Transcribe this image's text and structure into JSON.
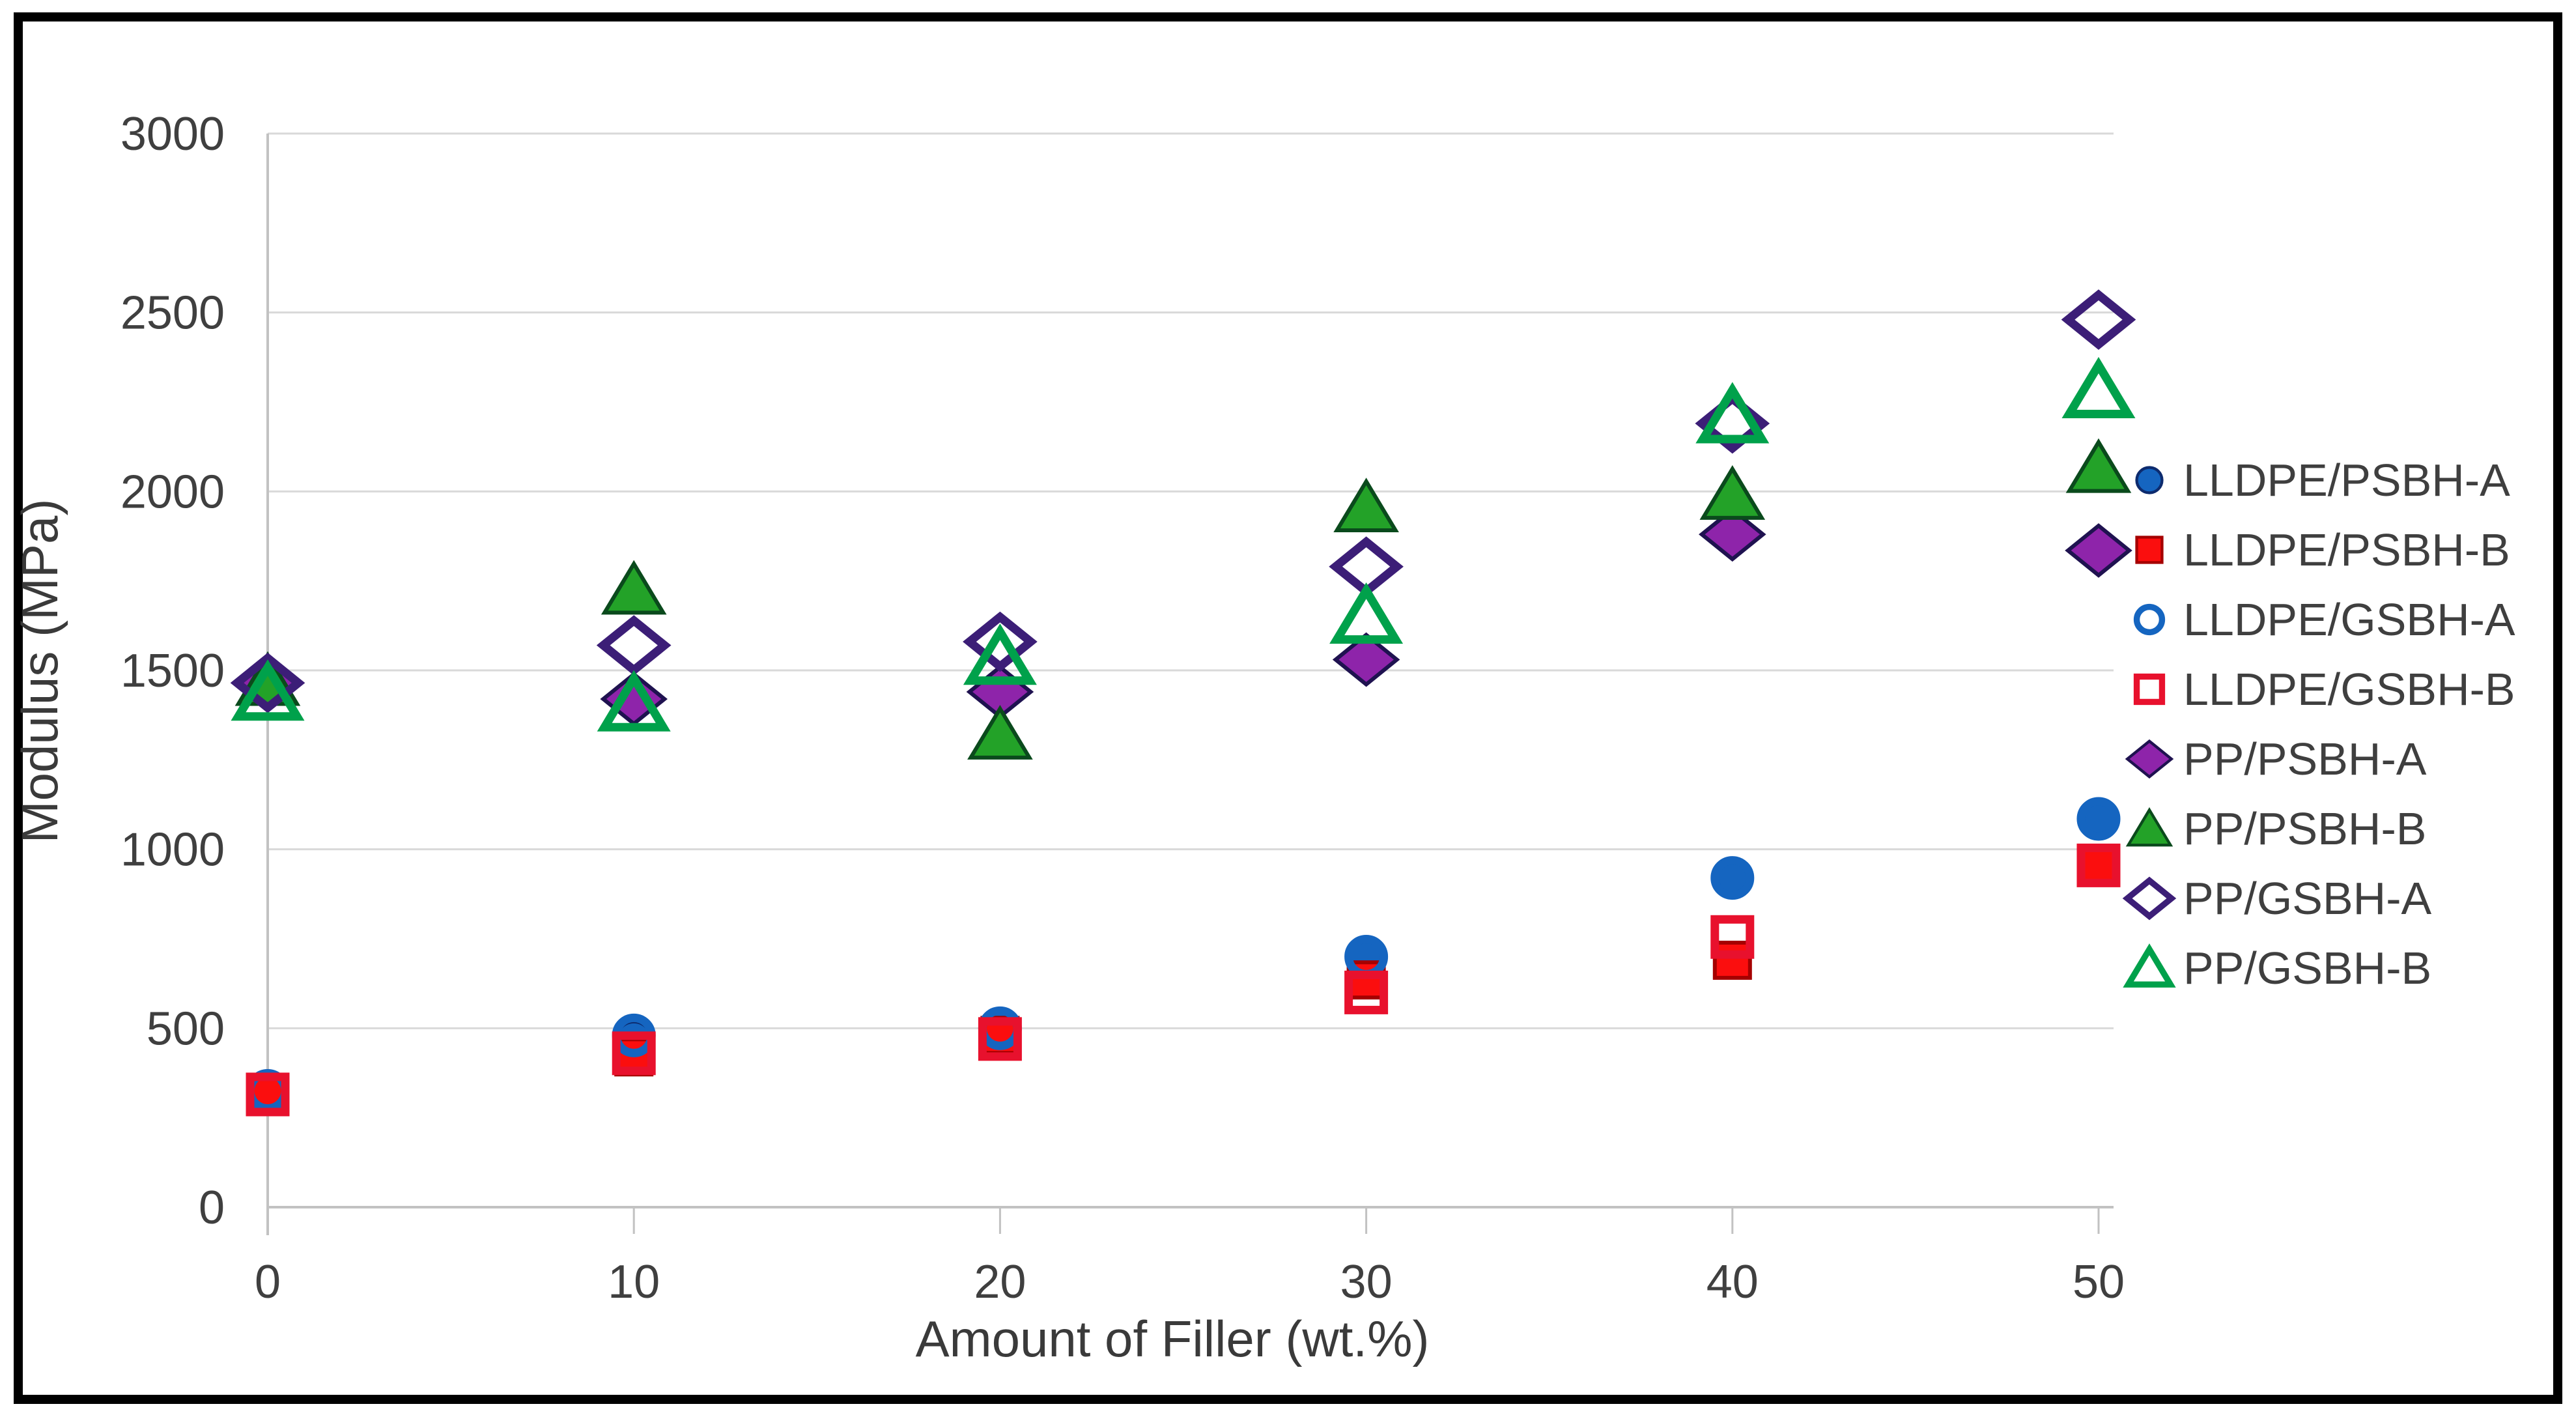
{
  "figure": {
    "title": "",
    "frame_color": "#000000",
    "background": "#ffffff"
  },
  "chart_data": {
    "type": "scatter",
    "title": "",
    "xlabel": "Amount of Filler (wt.%)",
    "ylabel": "Modulus (MPa)",
    "x": [
      0,
      10,
      20,
      30,
      40,
      50
    ],
    "x_tick_labels": [
      "0",
      "10",
      "20",
      "30",
      "40",
      "50"
    ],
    "y_ticks": [
      0,
      500,
      1000,
      1500,
      2000,
      2500,
      3000
    ],
    "y_tick_labels": [
      "0",
      "500",
      "1000",
      "1500",
      "2000",
      "2500",
      "3000"
    ],
    "xlim": [
      0,
      52.5
    ],
    "ylim": [
      0,
      3000
    ],
    "grid": "horizontal",
    "gridline_color": "#d9d9d9",
    "axis_line_color": "#c2c2c2",
    "legend_position": "right",
    "series": [
      {
        "name": "LLDPE/PSBH-A",
        "marker": "circle",
        "style": "filled",
        "color": "#1565c0",
        "edge": "#0d2b6e",
        "values": [
          320,
          470,
          505,
          695,
          925,
          1080
        ]
      },
      {
        "name": "LLDPE/PSBH-B",
        "marker": "square",
        "style": "filled",
        "color": "#fb0e0e",
        "edge": "#a50000",
        "values": [
          320,
          420,
          480,
          635,
          690,
          960
        ]
      },
      {
        "name": "LLDPE/GSBH-A",
        "marker": "circle",
        "style": "open",
        "color": "#1565c0",
        "edge": "#1565c0",
        "values": [
          325,
          480,
          500,
          700,
          920,
          1085
        ]
      },
      {
        "name": "LLDPE/GSBH-B",
        "marker": "square",
        "style": "open",
        "color": "#e8112d",
        "edge": "#e8112d",
        "values": [
          315,
          430,
          470,
          600,
          755,
          955
        ]
      },
      {
        "name": "PP/PSBH-A",
        "marker": "diamond",
        "style": "filled",
        "color": "#8e24aa",
        "edge": "#1f1250",
        "values": [
          1460,
          1420,
          1440,
          1530,
          1880,
          1835
        ]
      },
      {
        "name": "PP/PSBH-B",
        "marker": "triangle",
        "style": "filled",
        "color": "#23a228",
        "edge": "#0a4a1c",
        "values": [
          1470,
          1725,
          1320,
          1955,
          1990,
          2065
        ]
      },
      {
        "name": "PP/GSBH-A",
        "marker": "diamond",
        "style": "open",
        "color": "#3c1e77",
        "edge": "#3c1e77",
        "values": [
          1465,
          1570,
          1580,
          1790,
          2190,
          2480
        ]
      },
      {
        "name": "PP/GSBH-B",
        "marker": "triangle",
        "style": "open",
        "color": "#00a14b",
        "edge": "#00a14b",
        "values": [
          1435,
          1405,
          1535,
          1650,
          2210,
          2280
        ]
      }
    ]
  }
}
